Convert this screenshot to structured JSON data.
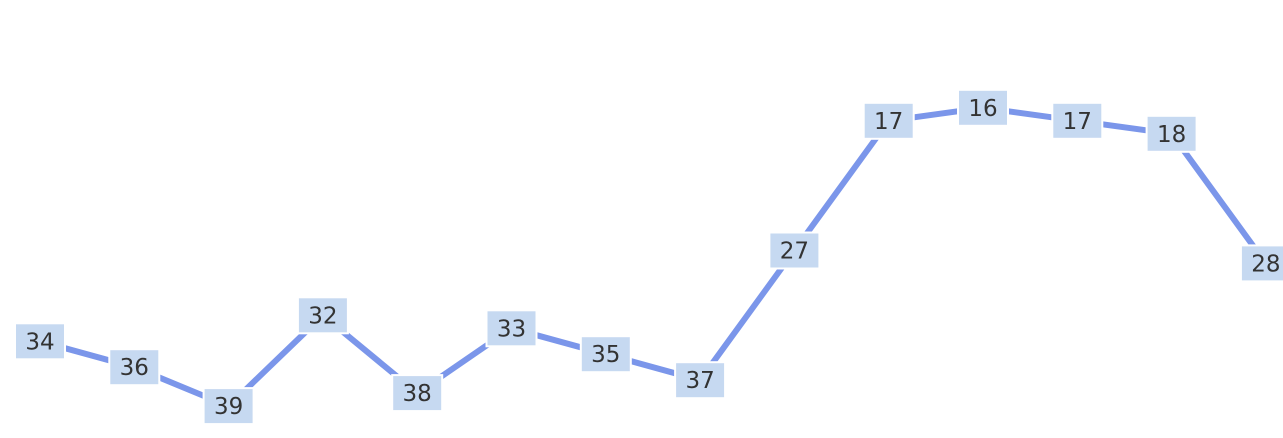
{
  "chart_data": {
    "type": "line",
    "title": "",
    "xlabel": "",
    "ylabel": "",
    "ylim": [
      42,
      10
    ],
    "grid": false,
    "legend": "none",
    "series": [
      {
        "values": [
          34,
          36,
          39,
          32,
          38,
          33,
          35,
          37,
          27,
          17,
          16,
          17,
          18,
          28
        ],
        "labels": [
          "34",
          "36",
          "39",
          "32",
          "38",
          "33",
          "35",
          "37",
          "27",
          "17",
          "16",
          "17",
          "18",
          "28"
        ]
      }
    ],
    "colors": {
      "line": "#7b96ea",
      "label_background": "#c6d9f1",
      "label_text": "#333333"
    }
  }
}
